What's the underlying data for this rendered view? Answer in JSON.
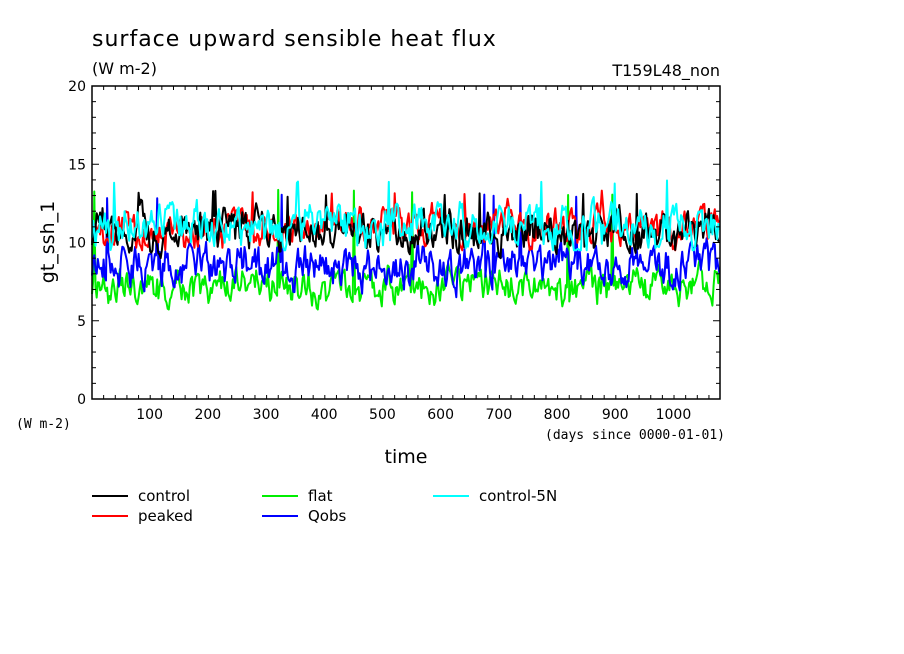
{
  "chart_data": {
    "type": "line",
    "title": "surface upward sensible heat flux",
    "units": "(W m-2)",
    "run_label": "T159L48_non",
    "ylabel": "gt_ssh_1",
    "xlabel": "time",
    "x_units": "(days since 0000-01-01)",
    "y_units_left": "(W m-2)",
    "xlim": [
      1,
      1080
    ],
    "ylim": [
      0,
      20
    ],
    "x_ticks": [
      100,
      200,
      300,
      400,
      500,
      600,
      700,
      800,
      900,
      1000
    ],
    "y_ticks": [
      0,
      5,
      10,
      15,
      20
    ],
    "legend_placement": "bottom",
    "series": [
      {
        "name": "control",
        "color": "#000000",
        "mean": 10.8,
        "amp": 0.9,
        "min": 9.0,
        "max": 13.3
      },
      {
        "name": "peaked",
        "color": "#ff0000",
        "mean": 10.9,
        "amp": 0.8,
        "min": 9.5,
        "max": 13.4
      },
      {
        "name": "flat",
        "color": "#00ee00",
        "mean": 7.2,
        "amp": 0.8,
        "min": 5.4,
        "max": 13.4
      },
      {
        "name": "Qobs",
        "color": "#0000ff",
        "mean": 8.5,
        "amp": 0.9,
        "min": 6.2,
        "max": 13.2
      },
      {
        "name": "control-5N",
        "color": "#00ffff",
        "mean": 11.0,
        "amp": 0.9,
        "min": 9.5,
        "max": 14.0
      }
    ]
  }
}
